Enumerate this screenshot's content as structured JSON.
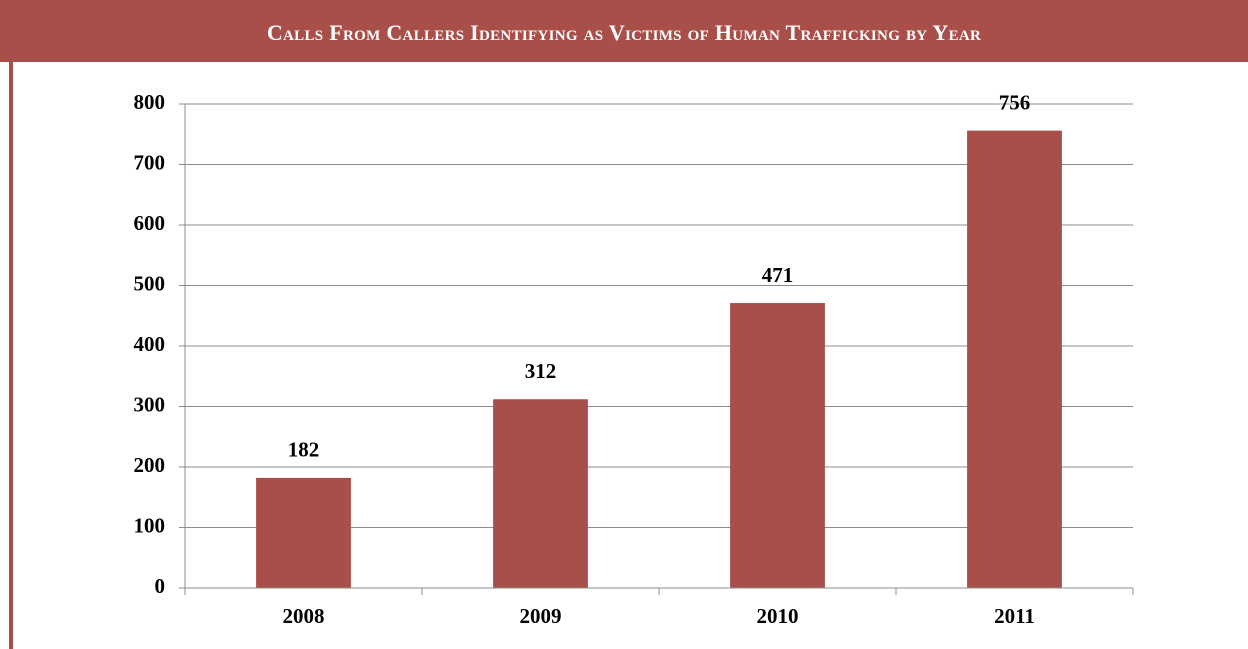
{
  "chart_data": {
    "type": "bar",
    "title": "Calls From Callers Identifying as Victims of Human Trafficking by Year",
    "categories": [
      "2008",
      "2009",
      "2010",
      "2011"
    ],
    "values": [
      182,
      312,
      471,
      756
    ],
    "color": "#a84f4a",
    "ylim": [
      0,
      800
    ],
    "yticks": [
      0,
      100,
      200,
      300,
      400,
      500,
      600,
      700,
      800
    ],
    "grid": true
  }
}
